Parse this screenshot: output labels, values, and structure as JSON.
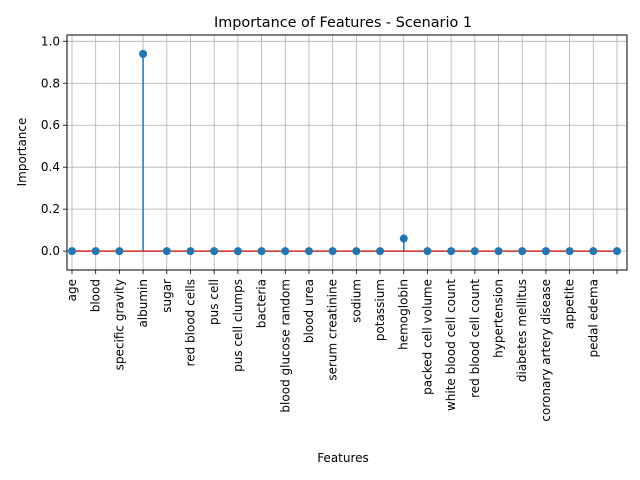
{
  "chart_data": {
    "type": "stem",
    "title": "Importance of Features - Scenario 1",
    "xlabel": "Features",
    "ylabel": "Importance",
    "ylim": [
      -0.09,
      1.03
    ],
    "yticks": [
      "0.0",
      "0.2",
      "0.4",
      "0.6",
      "0.8",
      "1.0"
    ],
    "grid": true,
    "categories": [
      "age",
      "blood",
      "specific gravity",
      "albumin",
      "sugar",
      "red blood cells",
      "pus cell",
      "pus cell clumps",
      "bacteria",
      "blood glucose random",
      "blood urea",
      "serum creatinine",
      "sodium",
      "potassium",
      "hemoglobin",
      "packed cell volume",
      "white blood cell count",
      "red blood cell count",
      "hypertension",
      "diabetes mellitus",
      "coronary artery disease",
      "appetite",
      "pedal edema",
      ""
    ],
    "values": [
      0,
      0,
      0,
      0.94,
      0,
      0,
      0,
      0,
      0,
      0,
      0,
      0,
      0,
      0,
      0.06,
      0,
      0,
      0,
      0,
      0,
      0,
      0,
      0,
      0
    ],
    "colors": {
      "stem": "#1f77b4",
      "baseline": "#d62728",
      "grid": "#b0b0b0"
    }
  }
}
